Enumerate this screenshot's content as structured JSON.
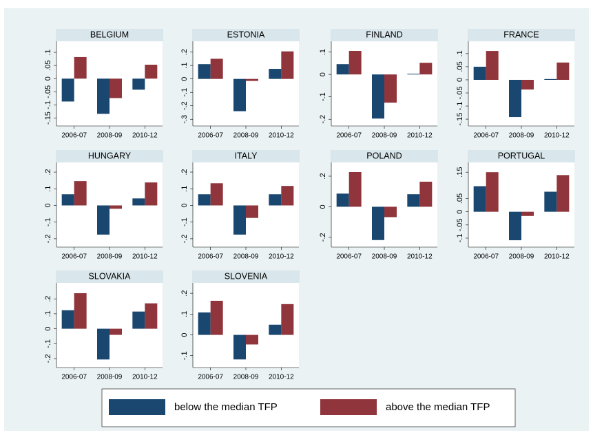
{
  "chart_data": [
    {
      "type": "bar",
      "title": "BELGIUM",
      "categories": [
        "2006-07",
        "2008-09",
        "2010-12"
      ],
      "series": [
        {
          "name": "below the median TFP",
          "color": "#1a476f",
          "values": [
            -0.087,
            -0.134,
            -0.042
          ]
        },
        {
          "name": "above the median TFP",
          "color": "#90353b",
          "values": [
            0.082,
            -0.074,
            0.053
          ]
        }
      ],
      "ylim": [
        -0.18,
        0.142
      ],
      "yticks": [
        {
          "value": -0.15,
          "label": "-.15"
        },
        {
          "value": -0.1,
          "label": "-.1"
        },
        {
          "value": -0.05,
          "label": "-.05"
        },
        0,
        {
          "value": 0.05,
          "label": ".05"
        },
        {
          "value": 0.1,
          "label": ".1"
        }
      ]
    },
    {
      "type": "bar",
      "title": "ESTONIA",
      "categories": [
        "2006-07",
        "2008-09",
        "2010-12"
      ],
      "series": [
        {
          "name": "below the median TFP",
          "color": "#1a476f",
          "values": [
            0.11,
            -0.24,
            0.075
          ]
        },
        {
          "name": "above the median TFP",
          "color": "#90353b",
          "values": [
            0.15,
            -0.015,
            0.205
          ]
        }
      ],
      "ylim": [
        -0.35,
        0.28
      ],
      "yticks": [
        {
          "value": -0.3,
          "label": "-.3"
        },
        {
          "value": -0.2,
          "label": "-.2"
        },
        {
          "value": -0.1,
          "label": "-.1"
        },
        0,
        {
          "value": 0.1,
          "label": ".1"
        },
        {
          "value": 0.2,
          "label": ".2"
        }
      ]
    },
    {
      "type": "bar",
      "title": "FINLAND",
      "categories": [
        "2006-07",
        "2008-09",
        "2010-12"
      ],
      "series": [
        {
          "name": "below the median TFP",
          "color": "#1a476f",
          "values": [
            0.046,
            -0.197,
            0.003
          ]
        },
        {
          "name": "above the median TFP",
          "color": "#90353b",
          "values": [
            0.105,
            -0.126,
            0.052
          ]
        }
      ],
      "ylim": [
        -0.23,
        0.148
      ],
      "yticks": [
        {
          "value": -0.2,
          "label": "-.2"
        },
        {
          "value": -0.1,
          "label": "-.1"
        },
        0,
        {
          "value": 0.1,
          "label": ".1"
        }
      ]
    },
    {
      "type": "bar",
      "title": "FRANCE",
      "categories": [
        "2006-07",
        "2008-09",
        "2010-12"
      ],
      "series": [
        {
          "name": "below the median TFP",
          "color": "#1a476f",
          "values": [
            0.05,
            -0.142,
            0.003
          ]
        },
        {
          "name": "above the median TFP",
          "color": "#90353b",
          "values": [
            0.11,
            -0.037,
            0.066
          ]
        }
      ],
      "ylim": [
        -0.176,
        0.147
      ],
      "yticks": [
        {
          "value": -0.15,
          "label": "-.15"
        },
        {
          "value": -0.1,
          "label": "-.1"
        },
        {
          "value": -0.05,
          "label": "-.05"
        },
        0,
        {
          "value": 0.05,
          "label": ".05"
        },
        {
          "value": 0.1,
          "label": ".1"
        }
      ]
    },
    {
      "type": "bar",
      "title": "HUNGARY",
      "categories": [
        "2006-07",
        "2008-09",
        "2010-12"
      ],
      "series": [
        {
          "name": "below the median TFP",
          "color": "#1a476f",
          "values": [
            0.067,
            -0.175,
            0.042
          ]
        },
        {
          "name": "above the median TFP",
          "color": "#90353b",
          "values": [
            0.146,
            -0.02,
            0.138
          ]
        }
      ],
      "ylim": [
        -0.25,
        0.258
      ],
      "yticks": [
        {
          "value": -0.2,
          "label": "-.2"
        },
        {
          "value": -0.1,
          "label": "-.1"
        },
        0,
        {
          "value": 0.1,
          "label": ".1"
        },
        {
          "value": 0.2,
          "label": ".2"
        }
      ]
    },
    {
      "type": "bar",
      "title": "ITALY",
      "categories": [
        "2006-07",
        "2008-09",
        "2010-12"
      ],
      "series": [
        {
          "name": "below the median TFP",
          "color": "#1a476f",
          "values": [
            0.067,
            -0.175,
            0.067
          ]
        },
        {
          "name": "above the median TFP",
          "color": "#90353b",
          "values": [
            0.133,
            -0.075,
            0.117
          ]
        }
      ],
      "ylim": [
        -0.25,
        0.258
      ],
      "yticks": [
        {
          "value": -0.2,
          "label": "-.2"
        },
        {
          "value": -0.1,
          "label": "-.1"
        },
        0,
        {
          "value": 0.1,
          "label": ".1"
        },
        {
          "value": 0.2,
          "label": ".2"
        }
      ]
    },
    {
      "type": "bar",
      "title": "POLAND",
      "categories": [
        "2006-07",
        "2008-09",
        "2010-12"
      ],
      "series": [
        {
          "name": "below the median TFP",
          "color": "#1a476f",
          "values": [
            0.086,
            -0.218,
            0.082
          ]
        },
        {
          "name": "above the median TFP",
          "color": "#90353b",
          "values": [
            0.227,
            -0.068,
            0.164
          ]
        }
      ],
      "ylim": [
        -0.264,
        0.29
      ],
      "yticks": [
        {
          "value": -0.2,
          "label": "-.2"
        },
        0,
        {
          "value": 0.2,
          "label": ".2"
        }
      ]
    },
    {
      "type": "bar",
      "title": "PORTUGAL",
      "categories": [
        "2006-07",
        "2008-09",
        "2010-12"
      ],
      "series": [
        {
          "name": "below the median TFP",
          "color": "#1a476f",
          "values": [
            0.097,
            -0.108,
            0.076
          ]
        },
        {
          "name": "above the median TFP",
          "color": "#90353b",
          "values": [
            0.15,
            -0.016,
            0.139
          ]
        }
      ],
      "ylim": [
        -0.134,
        0.187
      ],
      "yticks": [
        {
          "value": -0.1,
          "label": "-.1"
        },
        {
          "value": -0.05,
          "label": "-.05"
        },
        0,
        {
          "value": 0.05,
          "label": ".05"
        },
        {
          "value": 0.15,
          "label": ".15"
        }
      ]
    },
    {
      "type": "bar",
      "title": "SLOVAKIA",
      "categories": [
        "2006-07",
        "2008-09",
        "2010-12"
      ],
      "series": [
        {
          "name": "below the median TFP",
          "color": "#1a476f",
          "values": [
            0.124,
            -0.206,
            0.115
          ]
        },
        {
          "name": "above the median TFP",
          "color": "#90353b",
          "values": [
            0.238,
            -0.041,
            0.17
          ]
        }
      ],
      "ylim": [
        -0.26,
        0.307
      ],
      "yticks": [
        {
          "value": -0.2,
          "label": "-.2"
        },
        {
          "value": -0.1,
          "label": "-.1"
        },
        0,
        {
          "value": 0.1,
          "label": ".1"
        },
        {
          "value": 0.2,
          "label": ".2"
        }
      ]
    },
    {
      "type": "bar",
      "title": "SLOVENIA",
      "categories": [
        "2006-07",
        "2008-09",
        "2010-12"
      ],
      "series": [
        {
          "name": "below the median TFP",
          "color": "#1a476f",
          "values": [
            0.108,
            -0.118,
            0.049
          ]
        },
        {
          "name": "above the median TFP",
          "color": "#90353b",
          "values": [
            0.164,
            -0.046,
            0.148
          ]
        }
      ],
      "ylim": [
        -0.157,
        0.25
      ],
      "yticks": [
        {
          "value": -0.1,
          "label": "-.1"
        },
        0,
        {
          "value": 0.1,
          "label": ".1"
        },
        {
          "value": 0.2,
          "label": ".2"
        }
      ]
    }
  ]
}
